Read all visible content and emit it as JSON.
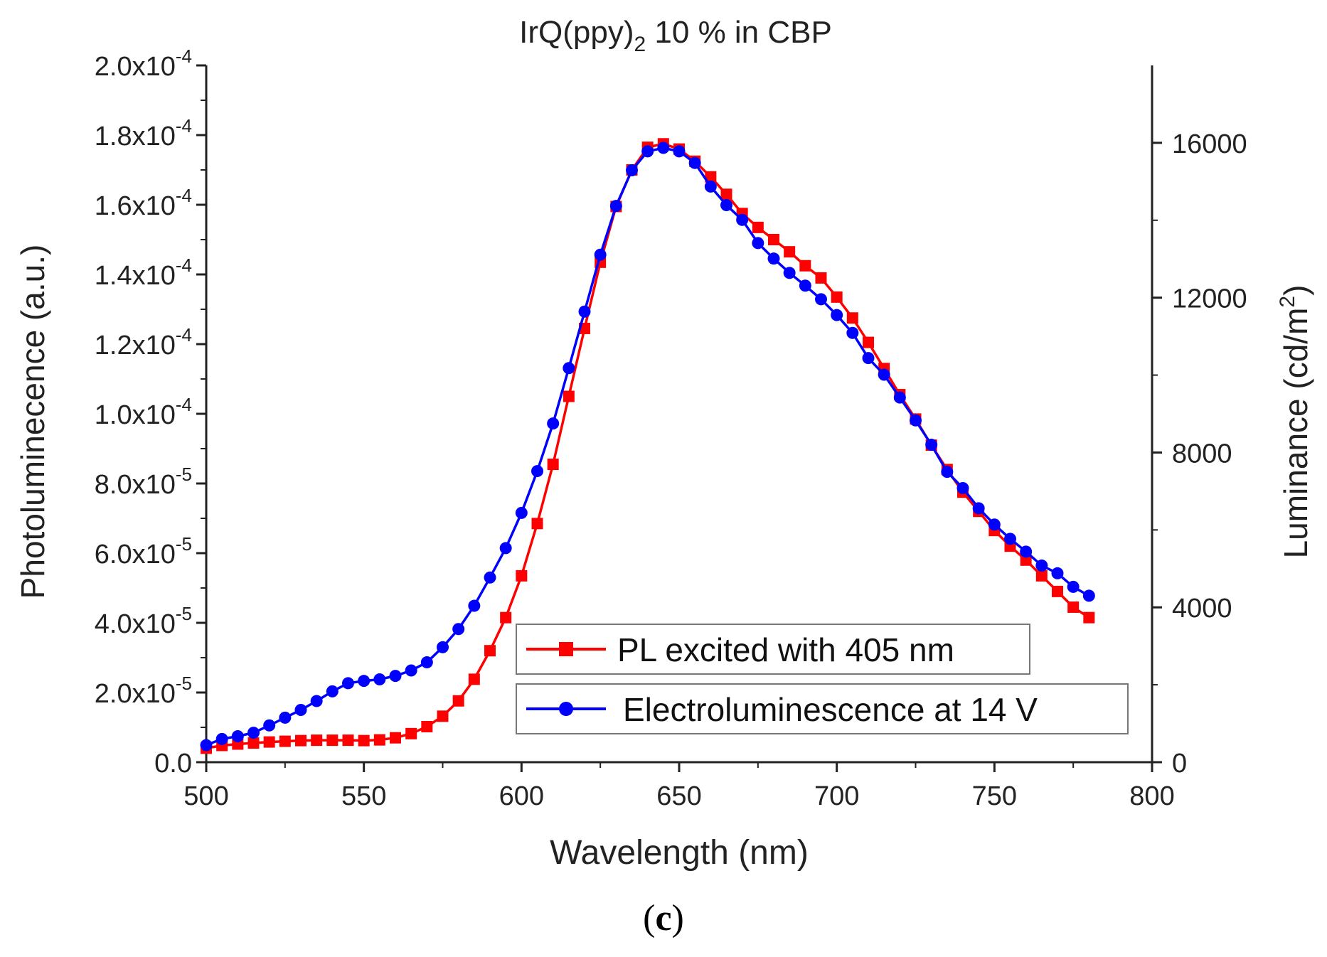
{
  "chart_data": {
    "type": "line",
    "title_prefix": "IrQ(ppy)",
    "title_subscript": "2",
    "title_suffix": " 10 % in CBP",
    "xlabel": "Wavelength (nm)",
    "ylabel_left": "Photoluminecence (a.u.)",
    "ylabel_right_prefix": "Luminance (cd/m",
    "ylabel_right_sup": "2",
    "ylabel_right_suffix": ")",
    "xlim": [
      500,
      800
    ],
    "ylim_left": [
      0,
      0.0002
    ],
    "ylim_right": [
      0,
      18000
    ],
    "x_ticks": [
      "500",
      "550",
      "600",
      "650",
      "700",
      "750",
      "800"
    ],
    "y_left_ticks": [
      {
        "mant": "0.0",
        "exp": ""
      },
      {
        "mant": "2.0x10",
        "exp": "-5"
      },
      {
        "mant": "4.0x10",
        "exp": "-5"
      },
      {
        "mant": "6.0x10",
        "exp": "-5"
      },
      {
        "mant": "8.0x10",
        "exp": "-5"
      },
      {
        "mant": "1.0x10",
        "exp": "-4"
      },
      {
        "mant": "1.2x10",
        "exp": "-4"
      },
      {
        "mant": "1.4x10",
        "exp": "-4"
      },
      {
        "mant": "1.6x10",
        "exp": "-4"
      },
      {
        "mant": "1.8x10",
        "exp": "-4"
      },
      {
        "mant": "2.0x10",
        "exp": "-4"
      }
    ],
    "y_right_ticks": [
      "0",
      "4000",
      "8000",
      "12000",
      "16000"
    ],
    "legend_position": "lower-center",
    "series": [
      {
        "name": "PL excited with 405 nm",
        "color": "#ff0000",
        "marker": "square",
        "axis": "left",
        "x": [
          500,
          505,
          510,
          515,
          520,
          525,
          530,
          535,
          540,
          545,
          550,
          555,
          560,
          565,
          570,
          575,
          580,
          585,
          590,
          595,
          600,
          605,
          610,
          615,
          620,
          625,
          630,
          635,
          640,
          645,
          650,
          655,
          660,
          665,
          670,
          675,
          680,
          685,
          690,
          695,
          700,
          705,
          710,
          715,
          720,
          725,
          730,
          735,
          740,
          745,
          750,
          755,
          760,
          765,
          770,
          775,
          780
        ],
        "y": [
          4e-06,
          4.8e-06,
          5.2e-06,
          5.5e-06,
          5.8e-06,
          6e-06,
          6.2e-06,
          6.3e-06,
          6.3e-06,
          6.3e-06,
          6.2e-06,
          6.4e-06,
          7e-06,
          8.2e-06,
          1.02e-05,
          1.32e-05,
          1.76e-05,
          2.38e-05,
          3.2e-05,
          4.15e-05,
          5.35e-05,
          6.85e-05,
          8.55e-05,
          0.000105,
          0.0001245,
          0.0001435,
          0.0001595,
          0.00017,
          0.0001765,
          0.0001775,
          0.000176,
          0.0001725,
          0.000168,
          0.000163,
          0.0001575,
          0.0001535,
          0.00015,
          0.0001465,
          0.0001425,
          0.000139,
          0.0001335,
          0.0001275,
          0.0001205,
          0.000113,
          0.0001055,
          9.85e-05,
          9.1e-05,
          8.4e-05,
          7.75e-05,
          7.2e-05,
          6.65e-05,
          6.2e-05,
          5.8e-05,
          5.35e-05,
          4.9e-05,
          4.45e-05,
          4.15e-05
        ]
      },
      {
        "name": "Electroluminescence at 14 V",
        "color": "#0000ff",
        "marker": "circle",
        "axis": "right",
        "x": [
          500,
          505,
          510,
          515,
          520,
          525,
          530,
          535,
          540,
          545,
          550,
          555,
          560,
          565,
          570,
          575,
          580,
          585,
          590,
          595,
          600,
          605,
          610,
          615,
          620,
          625,
          630,
          635,
          640,
          645,
          650,
          655,
          660,
          665,
          670,
          675,
          680,
          685,
          690,
          695,
          700,
          705,
          710,
          715,
          720,
          725,
          730,
          735,
          740,
          745,
          750,
          755,
          760,
          765,
          770,
          775,
          780
        ],
        "y": [
          440,
          600,
          670,
          760,
          950,
          1150,
          1350,
          1580,
          1830,
          2040,
          2100,
          2140,
          2230,
          2370,
          2580,
          2970,
          3440,
          4040,
          4770,
          5530,
          6440,
          7520,
          8750,
          10180,
          11640,
          13110,
          14370,
          15290,
          15780,
          15870,
          15780,
          15480,
          14870,
          14390,
          14010,
          13410,
          13010,
          12640,
          12310,
          11960,
          11550,
          11090,
          10440,
          10010,
          9420,
          8830,
          8200,
          7500,
          7080,
          6560,
          6140,
          5770,
          5440,
          5080,
          4880,
          4530,
          4300
        ]
      }
    ]
  },
  "caption": {
    "open": "(",
    "letter": "c",
    "close": ")"
  }
}
